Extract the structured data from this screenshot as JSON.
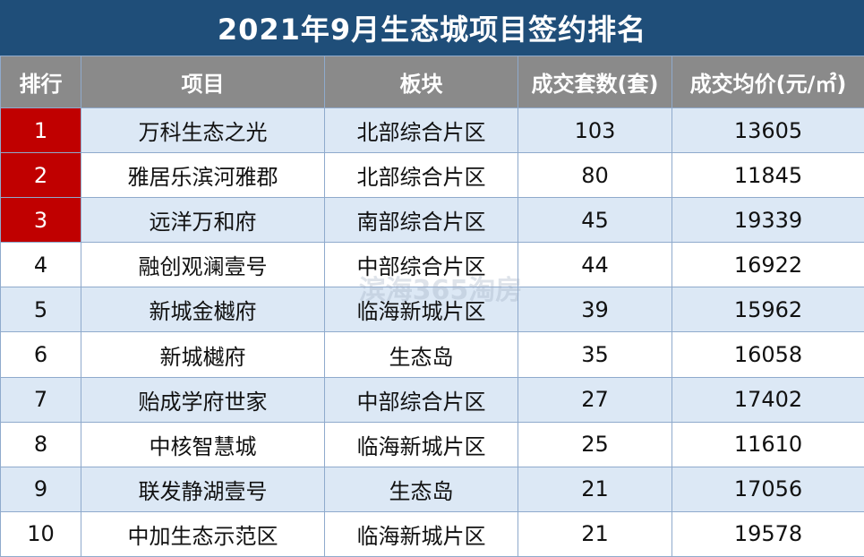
{
  "title": "2021年9月生态城项目签约排名",
  "columns": [
    "排行",
    "项目",
    "板块",
    "成交套数(套)",
    "成交均价(元/㎡)"
  ],
  "rows": [
    {
      "rank": "1",
      "project": "万科生态之光",
      "area": "北部综合片区",
      "units": "103",
      "price": "13605"
    },
    {
      "rank": "2",
      "project": "雅居乐滨河雅郡",
      "area": "北部综合片区",
      "units": "80",
      "price": "11845"
    },
    {
      "rank": "3",
      "project": "远洋万和府",
      "area": "南部综合片区",
      "units": "45",
      "price": "19339"
    },
    {
      "rank": "4",
      "project": "融创观澜壹号",
      "area": "中部综合片区",
      "units": "44",
      "price": "16922"
    },
    {
      "rank": "5",
      "project": "新城金樾府",
      "area": "临海新城片区",
      "units": "39",
      "price": "15962"
    },
    {
      "rank": "6",
      "project": "新城樾府",
      "area": "生态岛",
      "units": "35",
      "price": "16058"
    },
    {
      "rank": "7",
      "project": "贻成学府世家",
      "area": "中部综合片区",
      "units": "27",
      "price": "17402"
    },
    {
      "rank": "8",
      "project": "中核智慧城",
      "area": "临海新城片区",
      "units": "25",
      "price": "11610"
    },
    {
      "rank": "9",
      "project": "联发静湖壹号",
      "area": "生态岛",
      "units": "21",
      "price": "17056"
    },
    {
      "rank": "10",
      "project": "中加生态示范区",
      "area": "临海新城片区",
      "units": "21",
      "price": "19578"
    }
  ],
  "watermark": "滨海365淘房",
  "colors": {
    "header_bg": "#1f4e79",
    "column_header_bg": "#8a8a8a",
    "top3_rank_bg": "#c00000",
    "odd_row_bg": "#dce8f5"
  }
}
